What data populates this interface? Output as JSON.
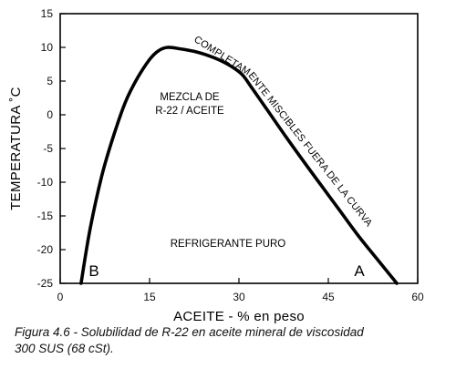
{
  "chart_data": {
    "type": "line",
    "xlabel": "ACEITE  -  % en peso",
    "ylabel": "TEMPERATURA  ˚C",
    "xlim": [
      0,
      60
    ],
    "ylim": [
      -25,
      15
    ],
    "x_ticks": [
      0,
      15,
      30,
      45,
      60
    ],
    "y_ticks": [
      15,
      10,
      5,
      0,
      -5,
      -10,
      -15,
      -20,
      -25
    ],
    "grid": false,
    "series": [
      {
        "x": [
          3.5,
          5,
          7,
          9,
          11,
          13,
          15,
          16.5,
          18,
          20,
          23,
          26,
          28.5,
          30.5,
          32,
          35,
          38,
          41,
          44,
          47,
          50,
          53,
          56.5
        ],
        "y": [
          -25,
          -17,
          -9,
          -3,
          2,
          5.5,
          8.2,
          9.5,
          10,
          9.8,
          9.3,
          8.4,
          7.3,
          6,
          4.2,
          0.4,
          -3.4,
          -7.1,
          -10.7,
          -14.3,
          -17.9,
          -21.2,
          -25
        ]
      }
    ],
    "annotations": {
      "miscible": "COMPLETAMENTE MISCIBLES FUERA DE LA CURVA",
      "mixture_line1": "MEZCLA DE",
      "mixture_line2": "R-22  /  ACEITE",
      "pure": "REFRIGERANTE PURO",
      "corner_b": "B",
      "corner_a": "A"
    }
  },
  "caption": {
    "line1": "Figura 4.6 - Solubilidad de R-22 en aceite mineral de viscosidad",
    "line2": "300 SUS (68 cSt)."
  }
}
